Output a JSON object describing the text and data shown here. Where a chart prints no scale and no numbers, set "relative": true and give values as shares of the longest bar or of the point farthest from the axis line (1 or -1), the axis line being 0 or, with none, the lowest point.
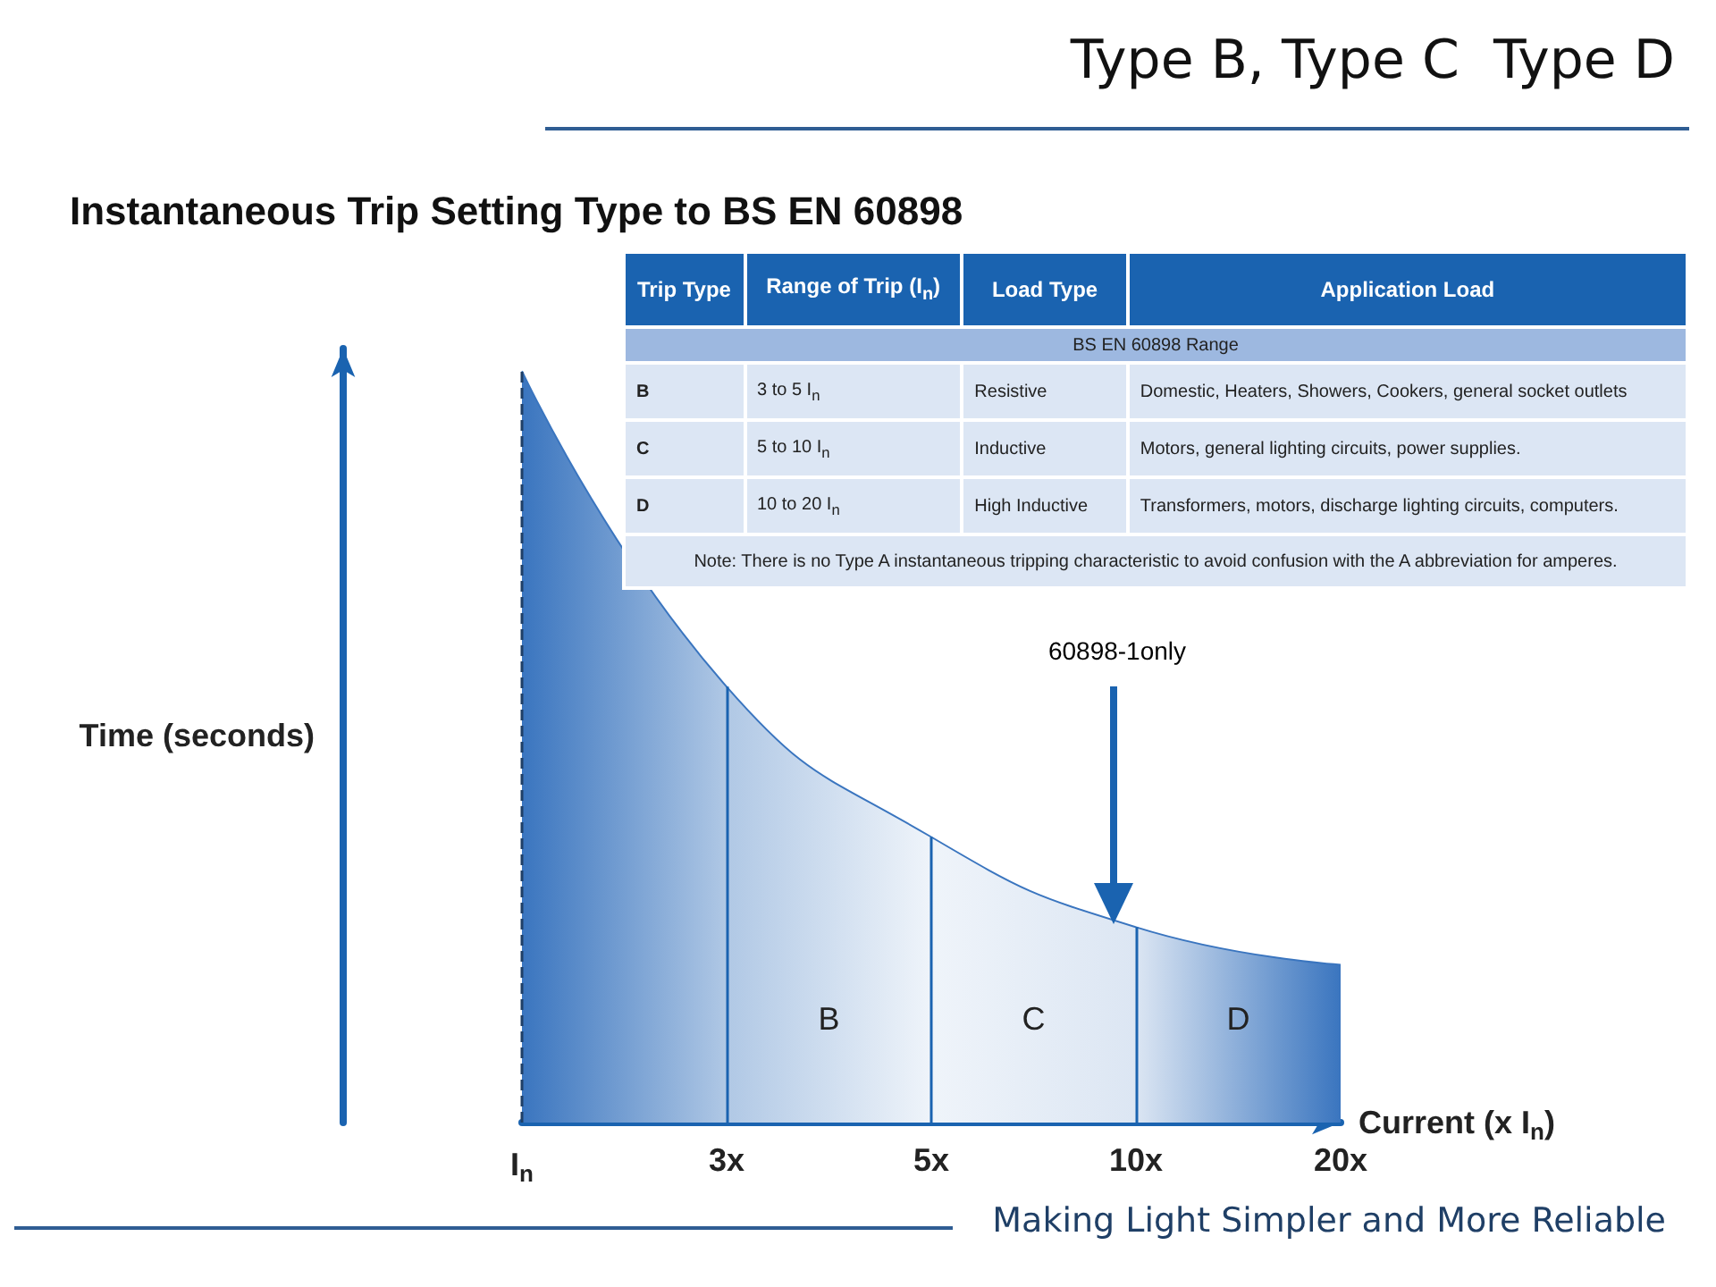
{
  "chart_data": [
    {
      "type": "area",
      "title": "Type B, Type C  Type D",
      "subtitle": "Instantaneous Trip Setting Type to BS EN 60898",
      "xlabel": "Current (x I$_{n}$)",
      "ylabel": "Time (seconds)",
      "relative": true,
      "categories": [
        "I$_{n}$",
        "3x",
        "5x",
        "10x",
        "20x"
      ],
      "series": [
        {
          "color": "#3a75bf",
          "values": [
            1,
            0.58,
            0.38,
            0.26,
            0.21
          ]
        }
      ],
      "ref_lines": [
        {
          "axis": "x",
          "value": "I$_{n}$",
          "line_style": "dashed",
          "color": "#1f3f66"
        },
        {
          "axis": "x",
          "value": "3x",
          "color": "#1a63b0"
        },
        {
          "axis": "x",
          "value": "5x",
          "color": "#1a63b0"
        },
        {
          "axis": "x",
          "value": "10x",
          "color": "#1a63b0"
        }
      ],
      "annotations": [
        "B",
        "C",
        "D",
        "60898-1only",
        "Making Light Simpler and More Reliable"
      ],
      "grid": false,
      "marker": "none"
    },
    {
      "type": "other",
      "annotations": [
        "Trip Type",
        "Range of Trip (I$_{n}$)",
        "Load Type",
        "Application Load",
        "BS EN 60898 Range",
        "B",
        "3 to 5 I$_{n}$",
        "Resistive",
        "Domestic, Heaters, Showers, Cookers, general socket outlets",
        "C",
        "5 to 10 I$_{n}$",
        "Inductive",
        "Motors, general lighting circuits, power supplies.",
        "D",
        "10 to 20 I$_{n}$",
        "High Inductive",
        "Transformers, motors, discharge lighting circuits, computers.",
        "Note: There is no Type A instantaneous tripping characteristic to avoid confusion with the A abbreviation for amperes."
      ]
    }
  ]
}
